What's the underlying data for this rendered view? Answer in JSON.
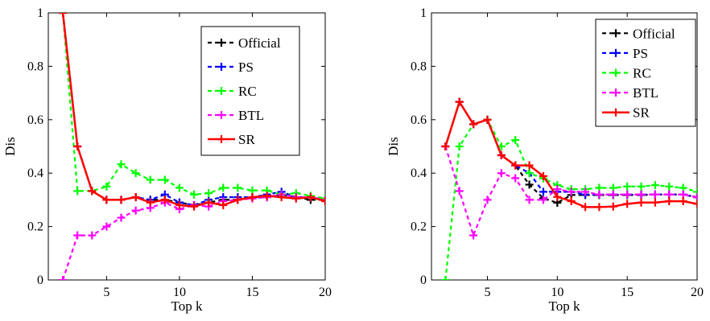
{
  "chart_data": [
    {
      "type": "line",
      "xlabel": "Top k",
      "ylabel": "Dis",
      "xlim": [
        1,
        20
      ],
      "ylim": [
        0,
        1
      ],
      "xticks": [
        5,
        10,
        15,
        20
      ],
      "yticks": [
        0,
        0.2,
        0.4,
        0.6,
        0.8,
        1
      ],
      "ytick_labels": [
        "0",
        "0.2",
        "0.4",
        "0.6",
        "0.8",
        "1"
      ],
      "grid": false,
      "legend_position": "top-right",
      "x": [
        2,
        3,
        4,
        5,
        6,
        7,
        8,
        9,
        10,
        11,
        12,
        13,
        14,
        15,
        16,
        17,
        18,
        19,
        20
      ],
      "series": [
        {
          "name": "Official",
          "color": "#000000",
          "style": "dashed",
          "values": [
            1.0,
            0.5,
            0.333,
            0.3,
            0.3,
            0.31,
            0.3,
            0.3,
            0.29,
            0.28,
            0.29,
            0.3,
            0.3,
            0.31,
            0.31,
            0.32,
            0.31,
            0.3,
            0.3
          ]
        },
        {
          "name": "PS",
          "color": "#0000ff",
          "style": "dashed",
          "values": [
            1.0,
            0.5,
            0.333,
            0.3,
            0.3,
            0.31,
            0.3,
            0.32,
            0.29,
            0.28,
            0.3,
            0.31,
            0.31,
            0.31,
            0.32,
            0.33,
            0.31,
            0.31,
            0.3
          ]
        },
        {
          "name": "RC",
          "color": "#00ff00",
          "style": "dashed",
          "values": [
            1.0,
            0.333,
            0.333,
            0.35,
            0.433,
            0.4,
            0.375,
            0.375,
            0.345,
            0.32,
            0.325,
            0.345,
            0.345,
            0.335,
            0.335,
            0.32,
            0.325,
            0.315,
            0.305
          ]
        },
        {
          "name": "BTL",
          "color": "#ff00ff",
          "style": "dashed",
          "values": [
            0.0,
            0.167,
            0.167,
            0.2,
            0.233,
            0.26,
            0.27,
            0.29,
            0.265,
            0.28,
            0.275,
            0.295,
            0.3,
            0.305,
            0.31,
            0.32,
            0.31,
            0.31,
            0.3
          ]
        },
        {
          "name": "SR",
          "color": "#ff0000",
          "style": "solid",
          "values": [
            1.0,
            0.5,
            0.333,
            0.3,
            0.3,
            0.31,
            0.29,
            0.3,
            0.28,
            0.275,
            0.29,
            0.28,
            0.3,
            0.31,
            0.315,
            0.31,
            0.305,
            0.31,
            0.295
          ]
        }
      ]
    },
    {
      "type": "line",
      "xlabel": "Top k",
      "ylabel": "Dis",
      "xlim": [
        1,
        20
      ],
      "ylim": [
        0,
        1
      ],
      "xticks": [
        5,
        10,
        15,
        20
      ],
      "yticks": [
        0,
        0.2,
        0.4,
        0.6,
        0.8,
        1
      ],
      "ytick_labels": [
        "0",
        "0.2",
        "0.4",
        "0.6",
        "0.8",
        "1"
      ],
      "grid": false,
      "legend_position": "top-right",
      "x": [
        2,
        3,
        4,
        5,
        6,
        7,
        8,
        9,
        10,
        11,
        12,
        13,
        14,
        15,
        16,
        17,
        18,
        19,
        20
      ],
      "series": [
        {
          "name": "Official",
          "color": "#000000",
          "style": "dashed",
          "values": [
            0.5,
            0.667,
            0.583,
            0.6,
            0.467,
            0.429,
            0.357,
            0.306,
            0.289,
            0.318,
            0.318,
            0.318,
            0.318,
            0.318,
            0.318,
            0.32,
            0.32,
            0.32,
            0.31
          ]
        },
        {
          "name": "PS",
          "color": "#0000ff",
          "style": "dashed",
          "values": [
            0.5,
            0.667,
            0.583,
            0.6,
            0.467,
            0.429,
            0.4,
            0.33,
            0.33,
            0.33,
            0.32,
            0.32,
            0.32,
            0.32,
            0.32,
            0.32,
            0.32,
            0.32,
            0.31
          ]
        },
        {
          "name": "RC",
          "color": "#00ff00",
          "style": "dashed",
          "values": [
            0.0,
            0.5,
            0.583,
            0.6,
            0.5,
            0.524,
            0.4,
            0.38,
            0.355,
            0.34,
            0.34,
            0.345,
            0.345,
            0.35,
            0.35,
            0.355,
            0.35,
            0.345,
            0.33
          ]
        },
        {
          "name": "BTL",
          "color": "#ff00ff",
          "style": "dashed",
          "values": [
            0.5,
            0.333,
            0.167,
            0.3,
            0.4,
            0.381,
            0.3,
            0.3,
            0.34,
            0.33,
            0.33,
            0.32,
            0.32,
            0.32,
            0.32,
            0.32,
            0.32,
            0.32,
            0.31
          ]
        },
        {
          "name": "SR",
          "color": "#ff0000",
          "style": "solid",
          "values": [
            0.5,
            0.667,
            0.583,
            0.6,
            0.467,
            0.429,
            0.429,
            0.389,
            0.311,
            0.295,
            0.273,
            0.273,
            0.275,
            0.285,
            0.29,
            0.29,
            0.295,
            0.295,
            0.285
          ]
        }
      ]
    }
  ]
}
